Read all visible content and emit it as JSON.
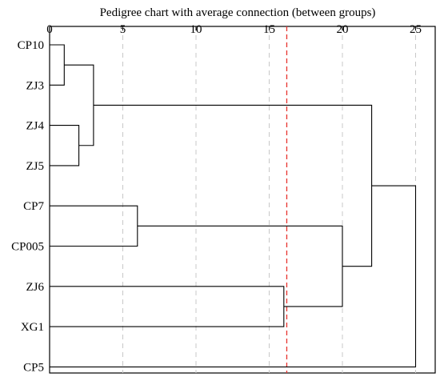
{
  "chart_data": {
    "type": "dendrogram",
    "title": "Pedigree chart with average connection (between groups)",
    "x_ticks": [
      0,
      5,
      10,
      15,
      20,
      25
    ],
    "xlim": [
      0,
      26
    ],
    "leaves": [
      "CP10",
      "ZJ3",
      "ZJ4",
      "ZJ5",
      "CP7",
      "CP005",
      "ZJ6",
      "XG1",
      "CP5"
    ],
    "merges": [
      {
        "a": "CP10",
        "b": "ZJ3",
        "distance": 1
      },
      {
        "a": "ZJ4",
        "b": "ZJ5",
        "distance": 2
      },
      {
        "a": "CP10+ZJ3",
        "b": "ZJ4+ZJ5",
        "distance": 3
      },
      {
        "a": "CP7",
        "b": "CP005",
        "distance": 6
      },
      {
        "a": "ZJ6",
        "b": "XG1",
        "distance": 16
      },
      {
        "a": "CP7+CP005",
        "b": "ZJ6+XG1",
        "distance": 20
      },
      {
        "a": "CP10+ZJ3+ZJ4+ZJ5",
        "b": "CP7+CP005+ZJ6+XG1",
        "distance": 22
      },
      {
        "a": "all",
        "b": "CP5",
        "distance": 25
      }
    ],
    "cut_line": 16.2,
    "gridlines": true,
    "colors": {
      "line": "#000000",
      "grid": "#c8c8c8",
      "cut": "#e8322e"
    }
  }
}
